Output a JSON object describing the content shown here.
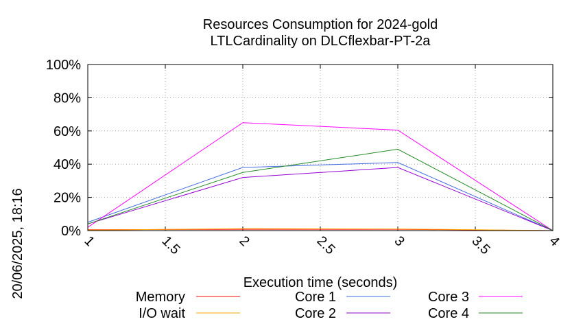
{
  "chart_data": {
    "type": "line",
    "title": "Resources Consumption for 2024-gold",
    "subtitle": "LTLCardinality on DLCflexbar-PT-2a",
    "xlabel": "Execution time (seconds)",
    "ylabel": "",
    "side_label": "20/06/2025, 18:16",
    "xlim": [
      1,
      4
    ],
    "ylim": [
      0,
      100
    ],
    "x_ticks": [
      "1",
      "1.5",
      "2",
      "2.5",
      "3",
      "3.5",
      "4"
    ],
    "y_ticks": [
      "0%",
      "20%",
      "40%",
      "60%",
      "80%",
      "100%"
    ],
    "grid": true,
    "legend_position": "bottom",
    "series": [
      {
        "name": "Memory",
        "color": "#ff0000",
        "x": [
          1,
          2,
          3,
          4
        ],
        "y": [
          0.5,
          0.8,
          0.8,
          0
        ]
      },
      {
        "name": "I/O wait",
        "color": "#ffa500",
        "x": [
          1,
          2,
          3,
          4
        ],
        "y": [
          0.3,
          1.2,
          1.0,
          0
        ]
      },
      {
        "name": "Core 1",
        "color": "#4169e1",
        "x": [
          1,
          2,
          3,
          4
        ],
        "y": [
          5,
          38,
          41,
          0
        ]
      },
      {
        "name": "Core 2",
        "color": "#9400d3",
        "x": [
          1,
          2,
          3,
          4
        ],
        "y": [
          4,
          32,
          38,
          0
        ]
      },
      {
        "name": "Core 3",
        "color": "#ff00ff",
        "x": [
          1,
          2,
          3,
          4
        ],
        "y": [
          2,
          65,
          60.5,
          0
        ]
      },
      {
        "name": "Core 4",
        "color": "#228b22",
        "x": [
          1,
          2,
          3,
          4
        ],
        "y": [
          4,
          35,
          49,
          0
        ]
      }
    ]
  }
}
